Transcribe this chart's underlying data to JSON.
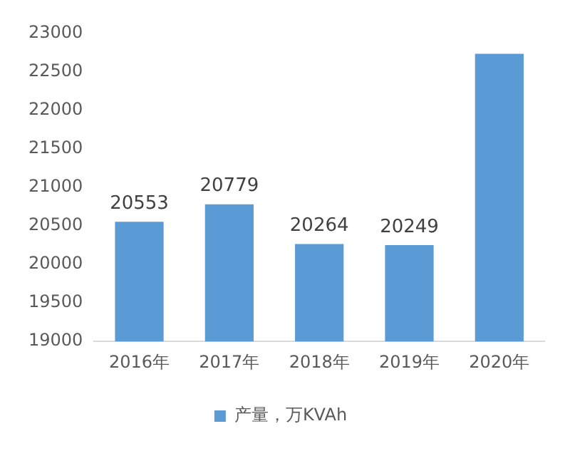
{
  "chart_data": {
    "type": "bar",
    "categories": [
      "2016年",
      "2017年",
      "2018年",
      "2019年",
      "2020年"
    ],
    "series": [
      {
        "name": "产量，万KVAh",
        "color": "#5b9bd5",
        "values": [
          20553,
          20779,
          20264,
          20249,
          22730
        ],
        "value_labels": [
          "20553",
          "20779",
          "20264",
          "20249",
          null
        ]
      }
    ],
    "ylim": [
      19000,
      23000
    ],
    "yticks": [
      19000,
      19500,
      20000,
      20500,
      21000,
      21500,
      22000,
      22500,
      23000
    ],
    "grid": false,
    "legend": "bottom"
  }
}
